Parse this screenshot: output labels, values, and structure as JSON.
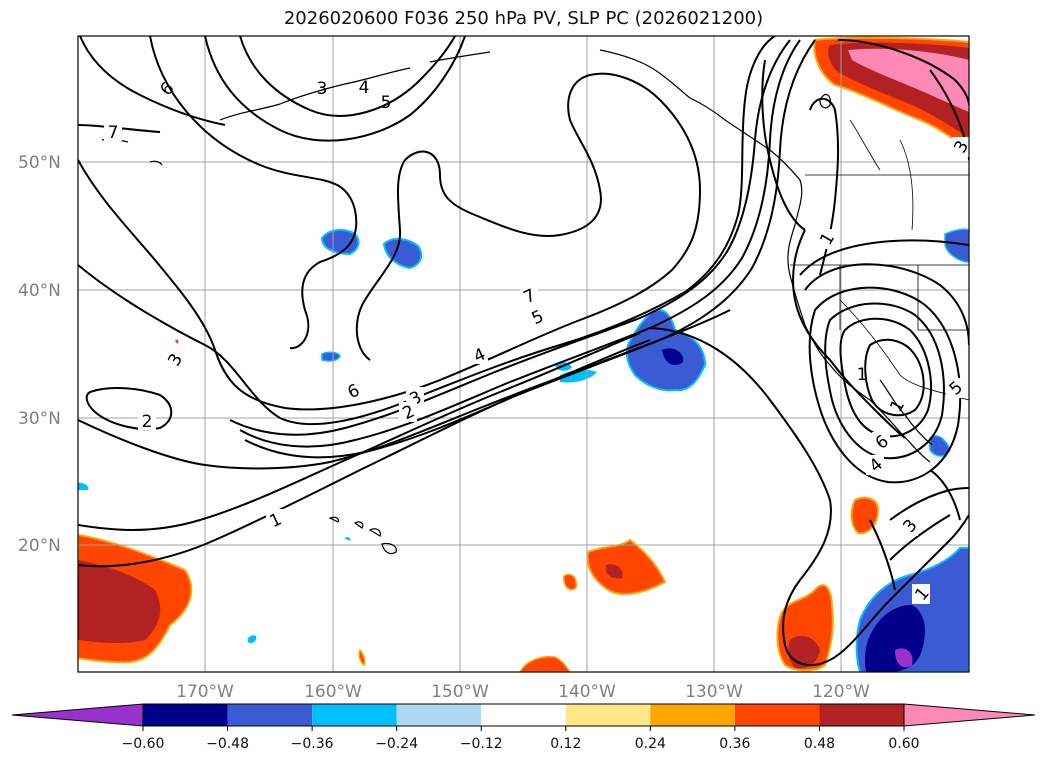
{
  "title": "2026020600 F036 250 hPa PV, SLP PC (2026021200)",
  "map": {
    "lat_labels": [
      "50°N",
      "40°N",
      "30°N",
      "20°N"
    ],
    "lon_labels": [
      "170°W",
      "160°W",
      "150°W",
      "140°W",
      "130°W",
      "120°W"
    ],
    "grid": true,
    "lon_range": [
      -180,
      -110
    ],
    "lat_range": [
      10,
      60
    ]
  },
  "contour_labels": [
    "7",
    "6",
    "4",
    "5",
    "7",
    "5",
    "4",
    "6",
    "3",
    "2",
    "3",
    "2",
    "1",
    "1",
    "3",
    "1",
    "1",
    "5",
    "6",
    "4",
    "3",
    "3",
    "1"
  ],
  "colorbar": {
    "ticks": [
      "−0.60",
      "−0.48",
      "−0.36",
      "−0.24",
      "−0.12",
      "0.12",
      "0.24",
      "0.36",
      "0.48",
      "0.60"
    ],
    "colors": [
      "#9932cc",
      "#00008b",
      "#3a5bd4",
      "#00bfff",
      "#add8f0",
      "#ffffff",
      "#ffe88a",
      "#ffa500",
      "#ff4500",
      "#b22222",
      "#ff88b4"
    ]
  }
}
